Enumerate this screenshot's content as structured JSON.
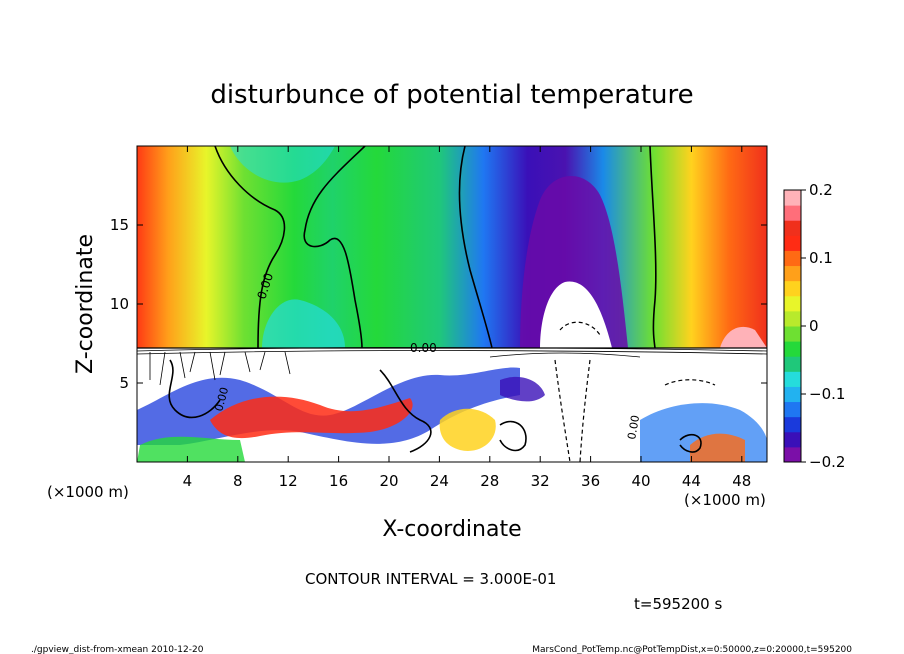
{
  "chart_data": {
    "type": "heatmap",
    "title": "disturbunce of potential temperature",
    "xlabel": "X-coordinate",
    "ylabel": "Z-coordinate",
    "x_unit_label": "(×1000 m)",
    "z_unit_label": "(×1000 m)",
    "xlim": [
      0,
      50
    ],
    "zlim": [
      0,
      20
    ],
    "x_ticks": [
      4,
      8,
      12,
      16,
      20,
      24,
      28,
      32,
      36,
      40,
      44,
      48
    ],
    "z_ticks": [
      5,
      10,
      15
    ],
    "colorbar": {
      "range": [
        -0.2,
        0.2
      ],
      "tick_values": [
        0.2,
        0.1,
        0,
        -0.1,
        -0.2
      ],
      "tick_labels": [
        "0.2",
        "0.1",
        "0",
        "−0.1",
        "−0.2"
      ],
      "colors": [
        "#7b0fa8",
        "#3a10b8",
        "#1a3adc",
        "#1f77f2",
        "#22b2f0",
        "#25dcdc",
        "#1fc87a",
        "#24d93a",
        "#6ee032",
        "#b8ea2c",
        "#e8f52a",
        "#ffd21e",
        "#ffa01a",
        "#ff6a14",
        "#ff2c14",
        "#f0301c",
        "#ff6e7a",
        "#ffb2b8"
      ]
    },
    "contour_interval_text": "CONTOUR INTERVAL = 3.000E-01",
    "contour_labels": [
      "0.00",
      "0.00",
      "0.00",
      "0.00"
    ],
    "time_text": "t=595200 s"
  },
  "footer": {
    "left": "./gpview_dist-from-xmean 2010-12-20",
    "right": "MarsCond_PotTemp.nc@PotTempDist,x=0:50000,z=0:20000,t=595200"
  },
  "colors": {
    "neg_max": "#6a0aa8",
    "neg": "#1a3adc",
    "zero": "#24d93a",
    "pos": "#ff2c14"
  }
}
